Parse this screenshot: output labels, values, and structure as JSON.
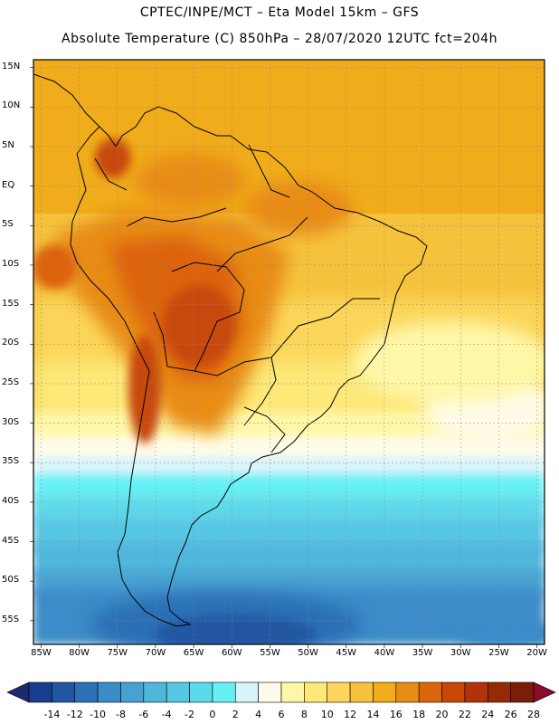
{
  "header": {
    "line1": "CPTEC/INPE/MCT –  Eta Model 15km – GFS",
    "line2": "Absolute Temperature (C) 850hPa – 28/07/2020 12UTC fct=204h"
  },
  "axes": {
    "lat_labels": [
      "15N",
      "10N",
      "5N",
      "EQ",
      "5S",
      "10S",
      "15S",
      "20S",
      "25S",
      "30S",
      "35S",
      "40S",
      "45S",
      "50S",
      "55S"
    ],
    "lat_values": [
      15,
      10,
      5,
      0,
      -5,
      -10,
      -15,
      -20,
      -25,
      -30,
      -35,
      -40,
      -45,
      -50,
      -55
    ],
    "lon_labels": [
      "85W",
      "80W",
      "75W",
      "70W",
      "65W",
      "60W",
      "55W",
      "50W",
      "45W",
      "40W",
      "35W",
      "30W",
      "25W",
      "20W"
    ],
    "lon_values": [
      -85,
      -80,
      -75,
      -70,
      -65,
      -60,
      -55,
      -50,
      -45,
      -40,
      -35,
      -30,
      -25,
      -20
    ],
    "lon_range": [
      -86,
      -19
    ],
    "lat_range": [
      -58,
      16
    ],
    "grid": "dotted"
  },
  "colorbar": {
    "labels": [
      "-14",
      "-12",
      "-10",
      "-8",
      "-6",
      "-4",
      "-2",
      "0",
      "2",
      "4",
      "6",
      "8",
      "10",
      "12",
      "14",
      "16",
      "18",
      "20",
      "22",
      "24",
      "26",
      "28"
    ],
    "colors": [
      "#1a3c8c",
      "#2356a2",
      "#2c70b6",
      "#3a8cc8",
      "#46a2d2",
      "#4fb6dc",
      "#56c8e4",
      "#5ddaea",
      "#66f0f4",
      "#d6f4fa",
      "#fffbe8",
      "#fff7a8",
      "#fde878",
      "#fbd65a",
      "#f6c23c",
      "#f0ac1a",
      "#e88c14",
      "#dc640a",
      "#c84808",
      "#b03408",
      "#962a06",
      "#7a1e0a"
    ],
    "low_arrow_color": "#1c2b6c",
    "high_arrow_color": "#8c0a2c"
  }
}
